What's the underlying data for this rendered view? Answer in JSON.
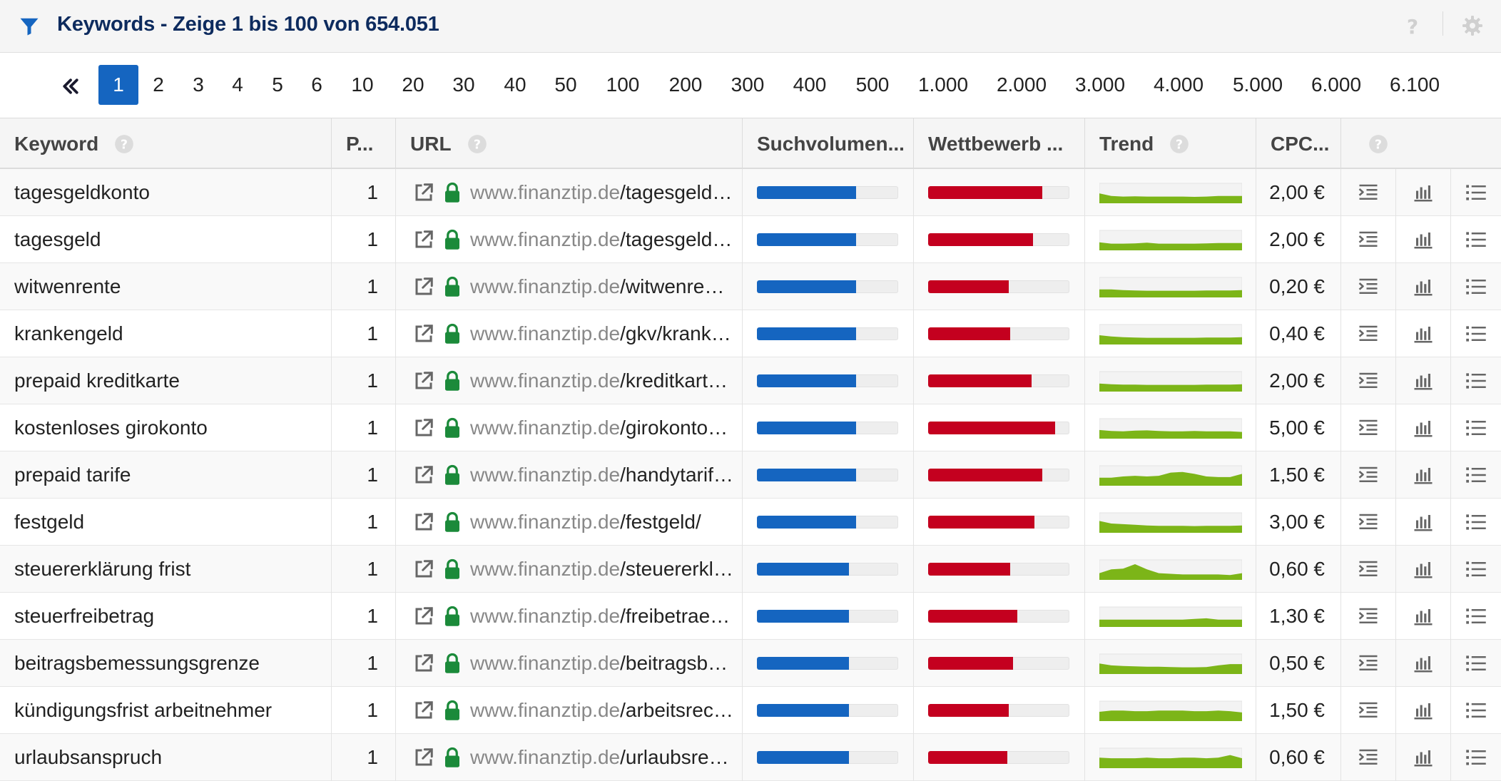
{
  "header": {
    "title": "Keywords - Zeige 1 bis 100 von 654.051",
    "filter_icon": "filter-icon",
    "help_icon": "help-icon",
    "settings_icon": "gear-icon",
    "accent_color": "#1565c0"
  },
  "pagination": {
    "first_icon": "double-chevron-left-icon",
    "pages": [
      "1",
      "2",
      "3",
      "4",
      "5",
      "6",
      "10",
      "20",
      "30",
      "40",
      "50",
      "100",
      "200",
      "300",
      "400",
      "500",
      "1.000",
      "2.000",
      "3.000",
      "4.000",
      "5.000",
      "6.000",
      "6.100"
    ],
    "active": "1"
  },
  "table": {
    "columns": [
      "Keyword",
      "P...",
      "URL",
      "Suchvolumen...",
      "Wettbewerb ...",
      "Trend",
      "CPC...",
      ""
    ],
    "rows": [
      {
        "keyword": "tagesgeldkonto",
        "position": "1",
        "domain": "www.finanztip.de",
        "path": "/tagesgeld…",
        "volume": 0.7,
        "competition": 0.81,
        "trend": [
          0.55,
          0.35,
          0.3,
          0.32,
          0.3,
          0.3,
          0.3,
          0.3,
          0.28,
          0.3,
          0.35,
          0.35,
          0.35
        ],
        "cpc": "2,00 €"
      },
      {
        "keyword": "tagesgeld",
        "position": "1",
        "domain": "www.finanztip.de",
        "path": "/tagesgeld…",
        "volume": 0.7,
        "competition": 0.74,
        "trend": [
          0.4,
          0.3,
          0.3,
          0.32,
          0.38,
          0.3,
          0.3,
          0.3,
          0.3,
          0.32,
          0.35,
          0.35,
          0.35
        ],
        "cpc": "2,00 €"
      },
      {
        "keyword": "witwenrente",
        "position": "1",
        "domain": "www.finanztip.de",
        "path": "/witwenre…",
        "volume": 0.7,
        "competition": 0.57,
        "trend": [
          0.4,
          0.4,
          0.35,
          0.32,
          0.3,
          0.3,
          0.3,
          0.3,
          0.3,
          0.32,
          0.32,
          0.32,
          0.35
        ],
        "cpc": "0,20 €"
      },
      {
        "keyword": "krankengeld",
        "position": "1",
        "domain": "www.finanztip.de",
        "path": "/gkv/krank…",
        "volume": 0.7,
        "competition": 0.58,
        "trend": [
          0.5,
          0.4,
          0.35,
          0.32,
          0.3,
          0.3,
          0.3,
          0.3,
          0.3,
          0.32,
          0.32,
          0.32,
          0.35
        ],
        "cpc": "0,40 €"
      },
      {
        "keyword": "prepaid kreditkarte",
        "position": "1",
        "domain": "www.finanztip.de",
        "path": "/kreditkart…",
        "volume": 0.7,
        "competition": 0.73,
        "trend": [
          0.4,
          0.35,
          0.32,
          0.32,
          0.3,
          0.3,
          0.3,
          0.3,
          0.3,
          0.32,
          0.32,
          0.32,
          0.35
        ],
        "cpc": "2,00 €"
      },
      {
        "keyword": "kostenloses girokonto",
        "position": "1",
        "domain": "www.finanztip.de",
        "path": "/girokonto…",
        "volume": 0.7,
        "competition": 0.9,
        "trend": [
          0.45,
          0.38,
          0.35,
          0.4,
          0.42,
          0.38,
          0.35,
          0.35,
          0.38,
          0.35,
          0.35,
          0.35,
          0.3
        ],
        "cpc": "5,00 €"
      },
      {
        "keyword": "prepaid tarife",
        "position": "1",
        "domain": "www.finanztip.de",
        "path": "/handytarif…",
        "volume": 0.7,
        "competition": 0.81,
        "trend": [
          0.4,
          0.4,
          0.5,
          0.55,
          0.5,
          0.55,
          0.8,
          0.85,
          0.7,
          0.5,
          0.45,
          0.45,
          0.7
        ],
        "cpc": "1,50 €"
      },
      {
        "keyword": "festgeld",
        "position": "1",
        "domain": "www.finanztip.de",
        "path": "/festgeld/",
        "volume": 0.7,
        "competition": 0.75,
        "trend": [
          0.7,
          0.5,
          0.45,
          0.4,
          0.35,
          0.32,
          0.32,
          0.32,
          0.3,
          0.32,
          0.32,
          0.32,
          0.35
        ],
        "cpc": "3,00 €"
      },
      {
        "keyword": "steuererklärung frist",
        "position": "1",
        "domain": "www.finanztip.de",
        "path": "/steuererkl…",
        "volume": 0.65,
        "competition": 0.58,
        "trend": [
          0.3,
          0.6,
          0.65,
          1.0,
          0.6,
          0.3,
          0.25,
          0.2,
          0.2,
          0.2,
          0.2,
          0.15,
          0.3
        ],
        "cpc": "0,60 €"
      },
      {
        "keyword": "steuerfreibetrag",
        "position": "1",
        "domain": "www.finanztip.de",
        "path": "/freibetrae…",
        "volume": 0.65,
        "competition": 0.63,
        "trend": [
          0.35,
          0.35,
          0.35,
          0.35,
          0.35,
          0.35,
          0.35,
          0.35,
          0.4,
          0.45,
          0.35,
          0.35,
          0.35
        ],
        "cpc": "1,30 €"
      },
      {
        "keyword": "beitragsbemessungsgrenze",
        "position": "1",
        "domain": "www.finanztip.de",
        "path": "/beitragsb…",
        "volume": 0.65,
        "competition": 0.6,
        "trend": [
          0.6,
          0.45,
          0.4,
          0.38,
          0.35,
          0.35,
          0.32,
          0.3,
          0.3,
          0.32,
          0.45,
          0.55,
          0.55
        ],
        "cpc": "0,50 €"
      },
      {
        "keyword": "kündigungsfrist arbeitnehmer",
        "position": "1",
        "domain": "www.finanztip.de",
        "path": "/arbeitsrec…",
        "volume": 0.65,
        "competition": 0.57,
        "trend": [
          0.5,
          0.6,
          0.6,
          0.55,
          0.55,
          0.6,
          0.6,
          0.6,
          0.55,
          0.55,
          0.6,
          0.55,
          0.45
        ],
        "cpc": "1,50 €"
      },
      {
        "keyword": "urlaubsanspruch",
        "position": "1",
        "domain": "www.finanztip.de",
        "path": "/urlaubsre…",
        "volume": 0.65,
        "competition": 0.56,
        "trend": [
          0.6,
          0.55,
          0.55,
          0.55,
          0.6,
          0.55,
          0.55,
          0.6,
          0.6,
          0.55,
          0.6,
          0.8,
          0.55
        ],
        "cpc": "0,60 €"
      }
    ],
    "action_icons": [
      "indent-list-icon",
      "bar-chart-icon",
      "list-icon"
    ],
    "colors": {
      "volume": "#1565c0",
      "competition": "#c4001f",
      "trend": "#7cb518"
    }
  }
}
